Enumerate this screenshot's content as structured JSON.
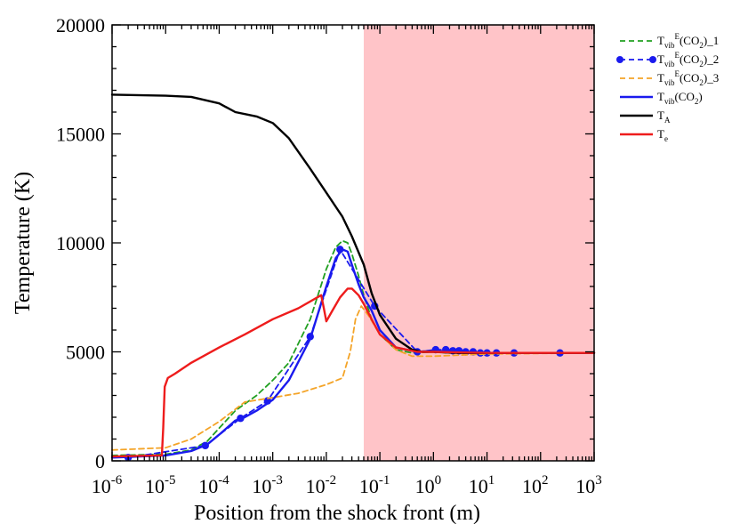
{
  "chart_data": {
    "type": "line",
    "title": "",
    "xlabel": "Position from the shock front (m)",
    "ylabel": "Temperature (K)",
    "xscale": "log",
    "xlim": [
      1e-06,
      1000
    ],
    "ylim": [
      0,
      20000
    ],
    "x_ticks": [
      {
        "value": 1e-06,
        "base": "10",
        "exp": "-6"
      },
      {
        "value": 1e-05,
        "base": "10",
        "exp": "-5"
      },
      {
        "value": 0.0001,
        "base": "10",
        "exp": "-4"
      },
      {
        "value": 0.001,
        "base": "10",
        "exp": "-3"
      },
      {
        "value": 0.01,
        "base": "10",
        "exp": "-2"
      },
      {
        "value": 0.1,
        "base": "10",
        "exp": "-1"
      },
      {
        "value": 1,
        "base": "10",
        "exp": "0"
      },
      {
        "value": 10,
        "base": "10",
        "exp": "1"
      },
      {
        "value": 100,
        "base": "10",
        "exp": "2"
      },
      {
        "value": 1000,
        "base": "10",
        "exp": "3"
      }
    ],
    "y_ticks": [
      {
        "value": 0,
        "label": "0"
      },
      {
        "value": 5000,
        "label": "5000"
      },
      {
        "value": 10000,
        "label": "10000"
      },
      {
        "value": 15000,
        "label": "15000"
      },
      {
        "value": 20000,
        "label": "20000"
      }
    ],
    "shaded_region": {
      "x_from": 0.05,
      "x_to": 1000,
      "color": "#ffc4c8"
    },
    "grid": false,
    "legend_position": "outside-right",
    "series": [
      {
        "key": "s1",
        "legend_parts": [
          {
            "t": "T"
          },
          {
            "t": "vib",
            "sub": true
          },
          {
            "t": "E",
            "sup": true
          },
          {
            "t": "(CO"
          },
          {
            "t": "2",
            "sub": true
          },
          {
            "t": ")_1"
          }
        ],
        "color": "#22a022",
        "dash": "6,4",
        "width": 1.8,
        "markers": false,
        "x": [
          1e-06,
          1e-05,
          3e-05,
          6e-05,
          0.0001,
          0.0002,
          0.0005,
          0.001,
          0.002,
          0.005,
          0.01,
          0.015,
          0.02,
          0.025,
          0.03,
          0.04,
          0.05,
          0.07,
          0.1,
          0.2,
          0.4,
          1,
          2,
          5,
          10,
          100,
          1000
        ],
        "y": [
          250,
          300,
          500,
          900,
          1500,
          2300,
          3000,
          3700,
          4500,
          6500,
          8800,
          9800,
          10100,
          10000,
          9500,
          8500,
          7600,
          6500,
          5800,
          5100,
          4950,
          5000,
          4950,
          4950,
          4950,
          4950,
          4950
        ]
      },
      {
        "key": "s2",
        "legend_parts": [
          {
            "t": "T"
          },
          {
            "t": "vib",
            "sub": true
          },
          {
            "t": "E",
            "sup": true
          },
          {
            "t": "(CO"
          },
          {
            "t": "2",
            "sub": true
          },
          {
            "t": ")_2"
          }
        ],
        "color": "#1a1aee",
        "dash": "6,4",
        "width": 1.8,
        "markers": true,
        "x": [
          2e-06,
          5.5e-05,
          0.00025,
          0.0008,
          0.005,
          0.018,
          0.08,
          0.5,
          1.1,
          1.7,
          2.3,
          3,
          4,
          5.5,
          7.5,
          10,
          15,
          32,
          230
        ],
        "y": [
          150,
          700,
          1950,
          2750,
          5700,
          9700,
          7100,
          5000,
          5100,
          5100,
          5050,
          5050,
          5000,
          5000,
          4950,
          4950,
          4950,
          4950,
          4950
        ]
      },
      {
        "key": "s3",
        "legend_parts": [
          {
            "t": "T"
          },
          {
            "t": "vib",
            "sub": true
          },
          {
            "t": "E",
            "sup": true
          },
          {
            "t": "(CO"
          },
          {
            "t": "2",
            "sub": true
          },
          {
            "t": ")_3"
          }
        ],
        "color": "#f4a428",
        "dash": "6,4",
        "width": 1.8,
        "markers": false,
        "x": [
          1e-06,
          1e-05,
          3e-05,
          0.0001,
          0.0003,
          0.001,
          0.003,
          0.01,
          0.02,
          0.028,
          0.035,
          0.045,
          0.06,
          0.1,
          0.2,
          0.4,
          1,
          10,
          1000
        ],
        "y": [
          500,
          600,
          1000,
          1800,
          2700,
          2900,
          3100,
          3500,
          3800,
          5000,
          6500,
          7100,
          6700,
          5800,
          5100,
          4800,
          4800,
          4900,
          4950
        ]
      },
      {
        "key": "s4",
        "legend_parts": [
          {
            "t": "T"
          },
          {
            "t": "vib",
            "sub": true
          },
          {
            "t": "(CO"
          },
          {
            "t": "2",
            "sub": true
          },
          {
            "t": ")"
          }
        ],
        "color": "#1a1aee",
        "dash": "",
        "width": 2.4,
        "markers": false,
        "x": [
          1e-06,
          1e-05,
          3e-05,
          6e-05,
          0.0001,
          0.0002,
          0.0003,
          0.0005,
          0.001,
          0.002,
          0.005,
          0.01,
          0.015,
          0.02,
          0.025,
          0.03,
          0.04,
          0.05,
          0.07,
          0.1,
          0.2,
          0.5,
          1,
          2,
          5,
          10,
          100,
          1000
        ],
        "y": [
          150,
          250,
          450,
          750,
          1200,
          1850,
          2000,
          2300,
          2800,
          3700,
          5600,
          8000,
          9300,
          9700,
          9600,
          9000,
          8100,
          7500,
          6900,
          6000,
          5200,
          5000,
          5050,
          5000,
          4950,
          4950,
          4950,
          4950
        ]
      },
      {
        "key": "s5",
        "legend_parts": [
          {
            "t": "T"
          },
          {
            "t": "A",
            "sub": true
          }
        ],
        "color": "#000000",
        "dash": "",
        "width": 2.4,
        "markers": false,
        "x": [
          1e-06,
          1e-05,
          3e-05,
          0.0001,
          0.0002,
          0.0005,
          0.001,
          0.002,
          0.005,
          0.01,
          0.02,
          0.03,
          0.05,
          0.07,
          0.1,
          0.2,
          0.4,
          0.6,
          1,
          3,
          10,
          100,
          1000
        ],
        "y": [
          16800,
          16750,
          16700,
          16400,
          16000,
          15800,
          15500,
          14800,
          13400,
          12300,
          11200,
          10300,
          9000,
          7700,
          6700,
          5600,
          5100,
          5000,
          5000,
          4950,
          4950,
          4950,
          4950
        ]
      },
      {
        "key": "s6",
        "legend_parts": [
          {
            "t": "T"
          },
          {
            "t": "e",
            "sub": true
          }
        ],
        "color": "#ee1c1c",
        "dash": "",
        "width": 2.4,
        "markers": false,
        "x": [
          1e-06,
          8.5e-06,
          9e-06,
          9.6e-06,
          1.1e-05,
          1.5e-05,
          3e-05,
          0.0001,
          0.0003,
          0.001,
          0.003,
          0.008,
          0.009,
          0.01,
          0.013,
          0.018,
          0.025,
          0.03,
          0.04,
          0.05,
          0.07,
          0.1,
          0.2,
          0.5,
          1,
          10,
          100,
          1000
        ],
        "y": [
          200,
          250,
          1500,
          3400,
          3800,
          4000,
          4500,
          5200,
          5800,
          6500,
          7000,
          7600,
          7000,
          6400,
          6900,
          7500,
          7900,
          7900,
          7600,
          7200,
          6500,
          5800,
          5200,
          5000,
          5000,
          4950,
          4950,
          4950
        ]
      }
    ]
  }
}
